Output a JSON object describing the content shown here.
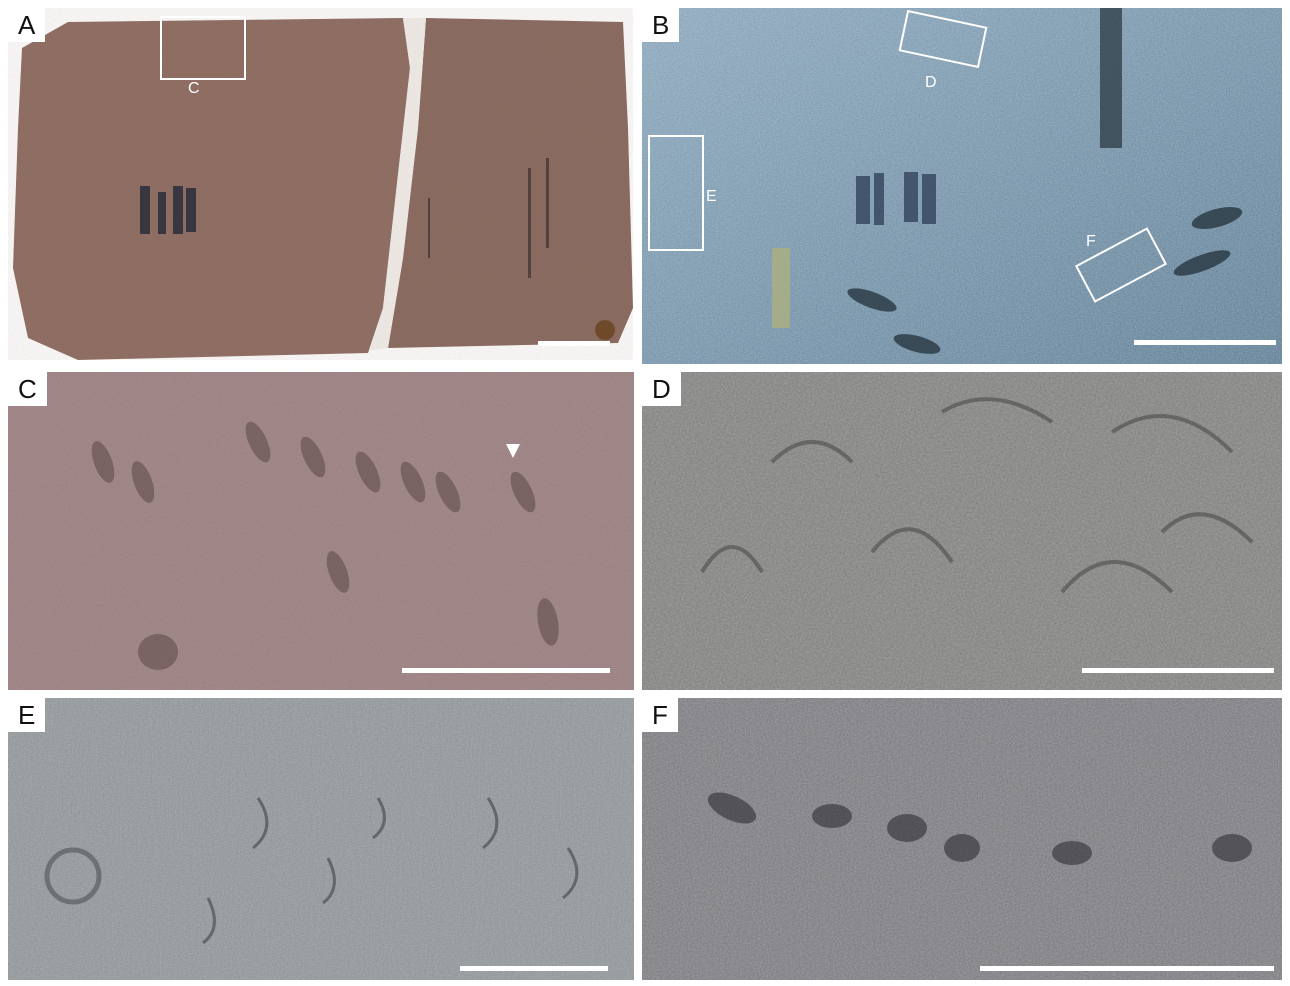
{
  "figure": {
    "panels": [
      {
        "id": "a",
        "letter": "A",
        "description": "photograph of split red sandstone slab with ink specimen numbers"
      },
      {
        "id": "b",
        "letter": "B",
        "description": "low-angle lit photograph of slab surface with trackways"
      },
      {
        "id": "c",
        "letter": "C",
        "description": "close-up of trackway impressions on reddish surface"
      },
      {
        "id": "d",
        "letter": "D",
        "description": "close-up of curved trackway impressions"
      },
      {
        "id": "e",
        "letter": "E",
        "description": "close-up of scattered crescent-shaped impressions"
      },
      {
        "id": "f",
        "letter": "F",
        "description": "close-up of paired impressions along a trackway"
      }
    ],
    "inset_labels": {
      "c": "C",
      "d": "D",
      "e": "E",
      "f": "F"
    },
    "colors": {
      "panel_a": "#8c6a5f",
      "panel_b": "#6f8fa6",
      "panel_c": "#9a7f80",
      "panel_d": "#7b7b79",
      "panel_e": "#8a8f92",
      "panel_f": "#76767a",
      "annotation": "#ffffff"
    }
  }
}
